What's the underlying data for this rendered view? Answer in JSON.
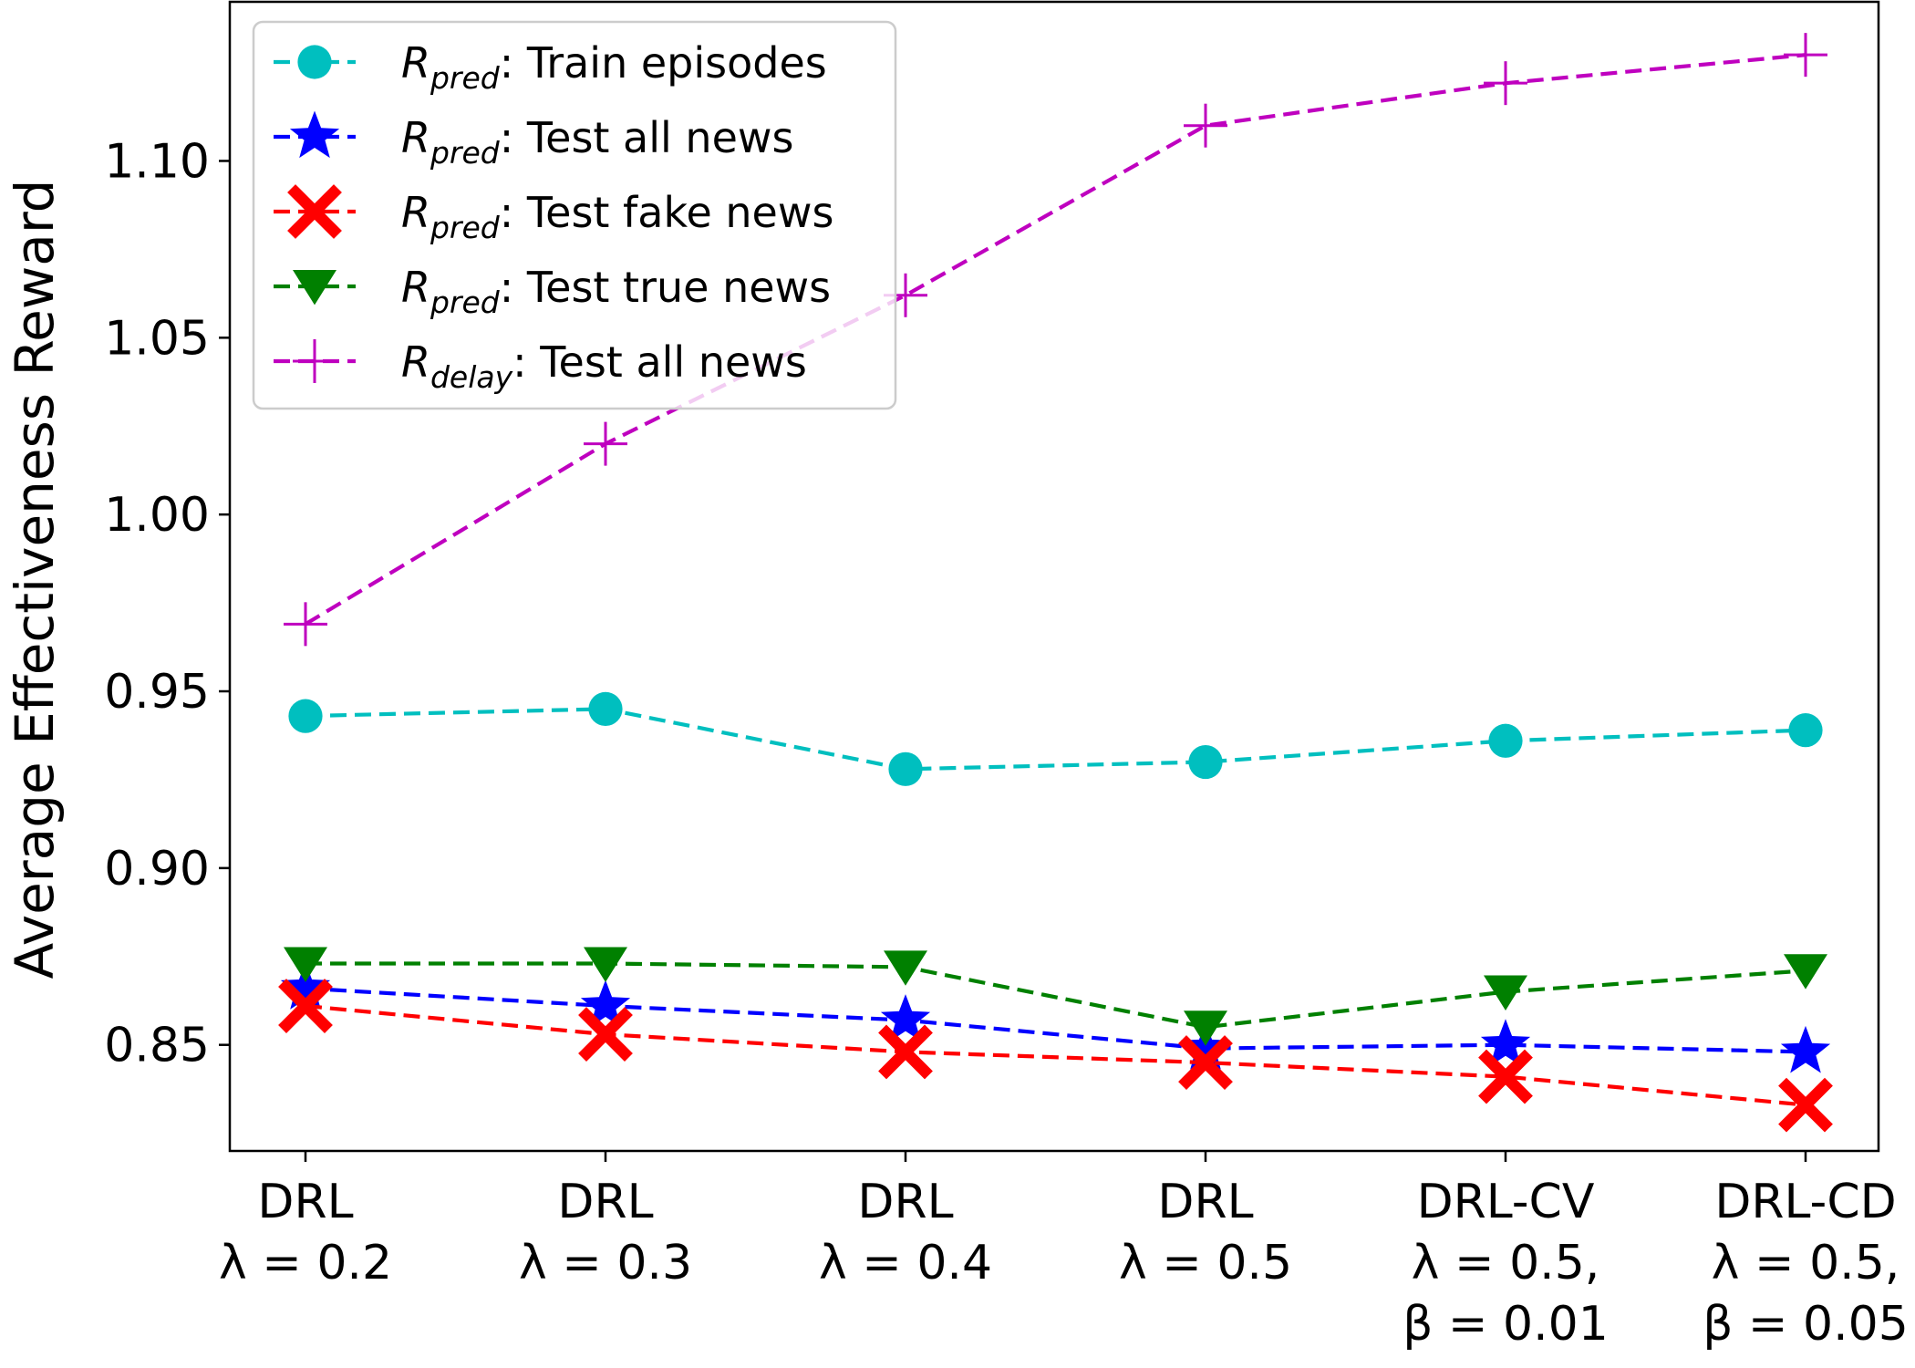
{
  "chart_data": {
    "type": "line",
    "ylabel": "Average Effectiveness Reward",
    "xlabel": "",
    "ylim": [
      0.82,
      1.145
    ],
    "yticks": [
      0.85,
      0.9,
      0.95,
      1.0,
      1.05,
      1.1
    ],
    "ytick_labels": [
      "0.85",
      "0.90",
      "0.95",
      "1.00",
      "1.05",
      "1.10"
    ],
    "grid": false,
    "legend_position": "top-left",
    "categories": [
      {
        "lines": [
          "DRL",
          "λ = 0.2"
        ]
      },
      {
        "lines": [
          "DRL",
          "λ = 0.3"
        ]
      },
      {
        "lines": [
          "DRL",
          "λ = 0.4"
        ]
      },
      {
        "lines": [
          "DRL",
          "λ = 0.5"
        ]
      },
      {
        "lines": [
          "DRL-CV",
          "λ = 0.5,",
          "β = 0.01"
        ]
      },
      {
        "lines": [
          "DRL-CD",
          "λ = 0.5,",
          "β = 0.05"
        ]
      }
    ],
    "series": [
      {
        "name": "R_pred: Train episodes",
        "label_main": "R",
        "label_sub": "pred",
        "label_rest": ": Train episodes",
        "color": "#00bfbf",
        "marker": "circle",
        "values": [
          0.943,
          0.945,
          0.928,
          0.93,
          0.936,
          0.939
        ]
      },
      {
        "name": "R_pred: Test all news",
        "label_main": "R",
        "label_sub": "pred",
        "label_rest": ": Test all news",
        "color": "#0000ff",
        "marker": "star",
        "values": [
          0.866,
          0.861,
          0.857,
          0.849,
          0.85,
          0.848
        ]
      },
      {
        "name": "R_pred: Test fake news",
        "label_main": "R",
        "label_sub": "pred",
        "label_rest": ": Test fake news",
        "color": "#ff0000",
        "marker": "x-filled",
        "values": [
          0.861,
          0.853,
          0.848,
          0.845,
          0.841,
          0.833
        ]
      },
      {
        "name": "R_pred: Test true news",
        "label_main": "R",
        "label_sub": "pred",
        "label_rest": ": Test true news",
        "color": "#008000",
        "marker": "triangle-down",
        "values": [
          0.873,
          0.873,
          0.872,
          0.855,
          0.865,
          0.871
        ]
      },
      {
        "name": "R_delay: Test all news",
        "label_main": "R",
        "label_sub": "delay",
        "label_rest": ": Test all news",
        "color": "#bf00bf",
        "marker": "plus",
        "values": [
          0.969,
          1.02,
          1.062,
          1.11,
          1.122,
          1.13
        ]
      }
    ]
  }
}
